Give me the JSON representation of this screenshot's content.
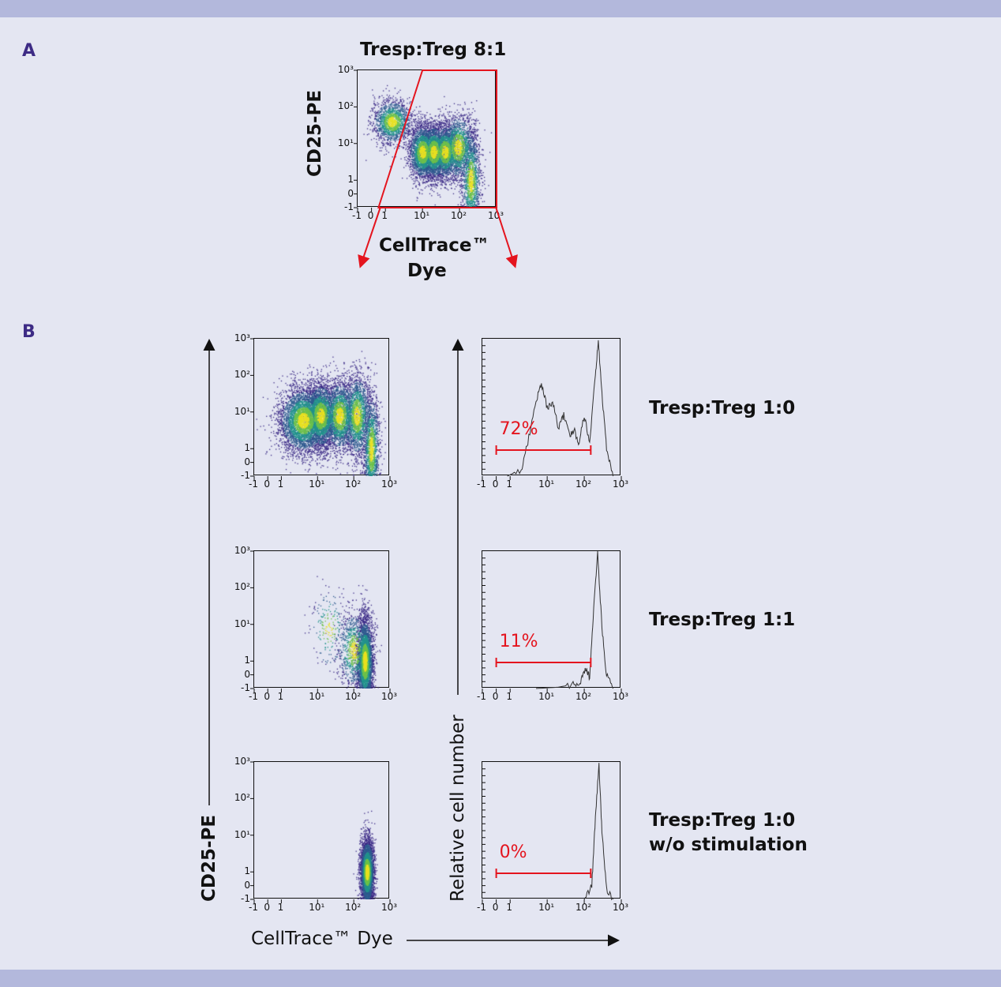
{
  "panels": {
    "a": "A",
    "b": "B"
  },
  "colors": {
    "gate": "#e4141e",
    "background": "#e4e6f2",
    "band": "#b3b8dc",
    "letter": "#3d2b85"
  },
  "axis_ticks": {
    "x": [
      "-1",
      "0",
      "1",
      "10¹",
      "10²",
      "10³"
    ],
    "y": [
      "10³",
      "10²",
      "10¹",
      "1",
      "0",
      "-1"
    ],
    "values": [
      -1,
      0,
      1,
      10,
      100,
      1000
    ]
  },
  "panel_a": {
    "title": "Tresp:Treg 8:1",
    "ylabel": "CD25-PE",
    "xlabel_line1": "CellTrace™",
    "xlabel_line2": "Dye"
  },
  "panel_b": {
    "ylabel_dot": "CD25-PE",
    "xlabel": "CellTrace™ Dye",
    "ylabel_hist": "Relative cell number",
    "conditions": [
      {
        "line1": "Tresp:Treg 1:0",
        "line2": ""
      },
      {
        "line1": "Tresp:Treg 1:1",
        "line2": ""
      },
      {
        "line1": "Tresp:Treg 1:0",
        "line2": "w/o stimulation"
      }
    ]
  },
  "chart_data": [
    {
      "type": "scatter",
      "name_shown": "",
      "title": "Tresp:Treg 8:1",
      "xlabel": "CellTrace™ Dye",
      "ylabel": "CD25-PE",
      "xscale": "biexponential",
      "yscale": "biexponential",
      "xlim": [
        -1,
        1000
      ],
      "ylim": [
        -1,
        1000
      ],
      "gate": {
        "polygon": [
          [
            0.5,
            -1
          ],
          [
            10,
            1000
          ],
          [
            1000,
            1000
          ],
          [
            1000,
            -1
          ]
        ]
      },
      "populations": [
        {
          "x": 1.5,
          "y": 40,
          "sx": 0.07,
          "sy": 0.08,
          "n": 1500
        },
        {
          "x": 10,
          "y": 6,
          "sx": 0.05,
          "sy": 0.1,
          "n": 2200
        },
        {
          "x": 20,
          "y": 6,
          "sx": 0.05,
          "sy": 0.1,
          "n": 2000
        },
        {
          "x": 40,
          "y": 6,
          "sx": 0.05,
          "sy": 0.1,
          "n": 1600
        },
        {
          "x": 90,
          "y": 8,
          "sx": 0.06,
          "sy": 0.12,
          "n": 1500
        },
        {
          "x": 200,
          "y": 1,
          "sx": 0.035,
          "sy": 0.18,
          "n": 1300
        }
      ]
    },
    {
      "type": "scatter",
      "xlabel": "CellTrace™ Dye",
      "ylabel": "CD25-PE",
      "xlim": [
        -1,
        1000
      ],
      "ylim": [
        -1,
        1000
      ],
      "populations": [
        {
          "x": 4,
          "y": 6,
          "sx": 0.09,
          "sy": 0.12,
          "n": 4000
        },
        {
          "x": 12,
          "y": 8,
          "sx": 0.06,
          "sy": 0.12,
          "n": 2500
        },
        {
          "x": 40,
          "y": 8,
          "sx": 0.06,
          "sy": 0.13,
          "n": 2000
        },
        {
          "x": 120,
          "y": 8,
          "sx": 0.05,
          "sy": 0.15,
          "n": 1800
        },
        {
          "x": 300,
          "y": 1,
          "sx": 0.03,
          "sy": 0.2,
          "n": 1500
        }
      ]
    },
    {
      "type": "histogram",
      "xlim": [
        -1,
        1000
      ],
      "gate": {
        "range": [
          0,
          150
        ],
        "label": "72%"
      },
      "points": [
        [
          0.8,
          0
        ],
        [
          2,
          0.05
        ],
        [
          3,
          0.25
        ],
        [
          5,
          0.55
        ],
        [
          7,
          0.68
        ],
        [
          10,
          0.5
        ],
        [
          14,
          0.55
        ],
        [
          20,
          0.35
        ],
        [
          28,
          0.45
        ],
        [
          40,
          0.3
        ],
        [
          55,
          0.35
        ],
        [
          70,
          0.22
        ],
        [
          100,
          0.45
        ],
        [
          140,
          0.25
        ],
        [
          200,
          0.75
        ],
        [
          240,
          1.0
        ],
        [
          300,
          0.6
        ],
        [
          400,
          0.2
        ],
        [
          600,
          0
        ]
      ]
    },
    {
      "type": "scatter",
      "xlim": [
        -1,
        1000
      ],
      "ylim": [
        -1,
        1000
      ],
      "populations": [
        {
          "x": 200,
          "y": 1,
          "sx": 0.03,
          "sy": 0.16,
          "n": 3500
        },
        {
          "x": 100,
          "y": 2,
          "sx": 0.06,
          "sy": 0.14,
          "n": 900
        },
        {
          "x": 20,
          "y": 8,
          "sx": 0.07,
          "sy": 0.15,
          "n": 200
        }
      ]
    },
    {
      "type": "histogram",
      "xlim": [
        -1,
        1000
      ],
      "gate": {
        "range": [
          0,
          150
        ],
        "label": "11%"
      },
      "points": [
        [
          5,
          0
        ],
        [
          20,
          0.01
        ],
        [
          50,
          0.03
        ],
        [
          80,
          0.05
        ],
        [
          110,
          0.15
        ],
        [
          140,
          0.08
        ],
        [
          180,
          0.6
        ],
        [
          230,
          1.0
        ],
        [
          300,
          0.45
        ],
        [
          400,
          0.1
        ],
        [
          600,
          0
        ]
      ]
    },
    {
      "type": "scatter",
      "xlim": [
        -1,
        1000
      ],
      "ylim": [
        -1,
        1000
      ],
      "populations": [
        {
          "x": 230,
          "y": 1,
          "sx": 0.025,
          "sy": 0.12,
          "n": 4000
        }
      ]
    },
    {
      "type": "histogram",
      "xlim": [
        -1,
        1000
      ],
      "gate": {
        "range": [
          0,
          150
        ],
        "label": "0%"
      },
      "points": [
        [
          100,
          0
        ],
        [
          160,
          0.1
        ],
        [
          200,
          0.6
        ],
        [
          250,
          1.0
        ],
        [
          300,
          0.5
        ],
        [
          400,
          0.08
        ],
        [
          600,
          0
        ]
      ]
    }
  ]
}
